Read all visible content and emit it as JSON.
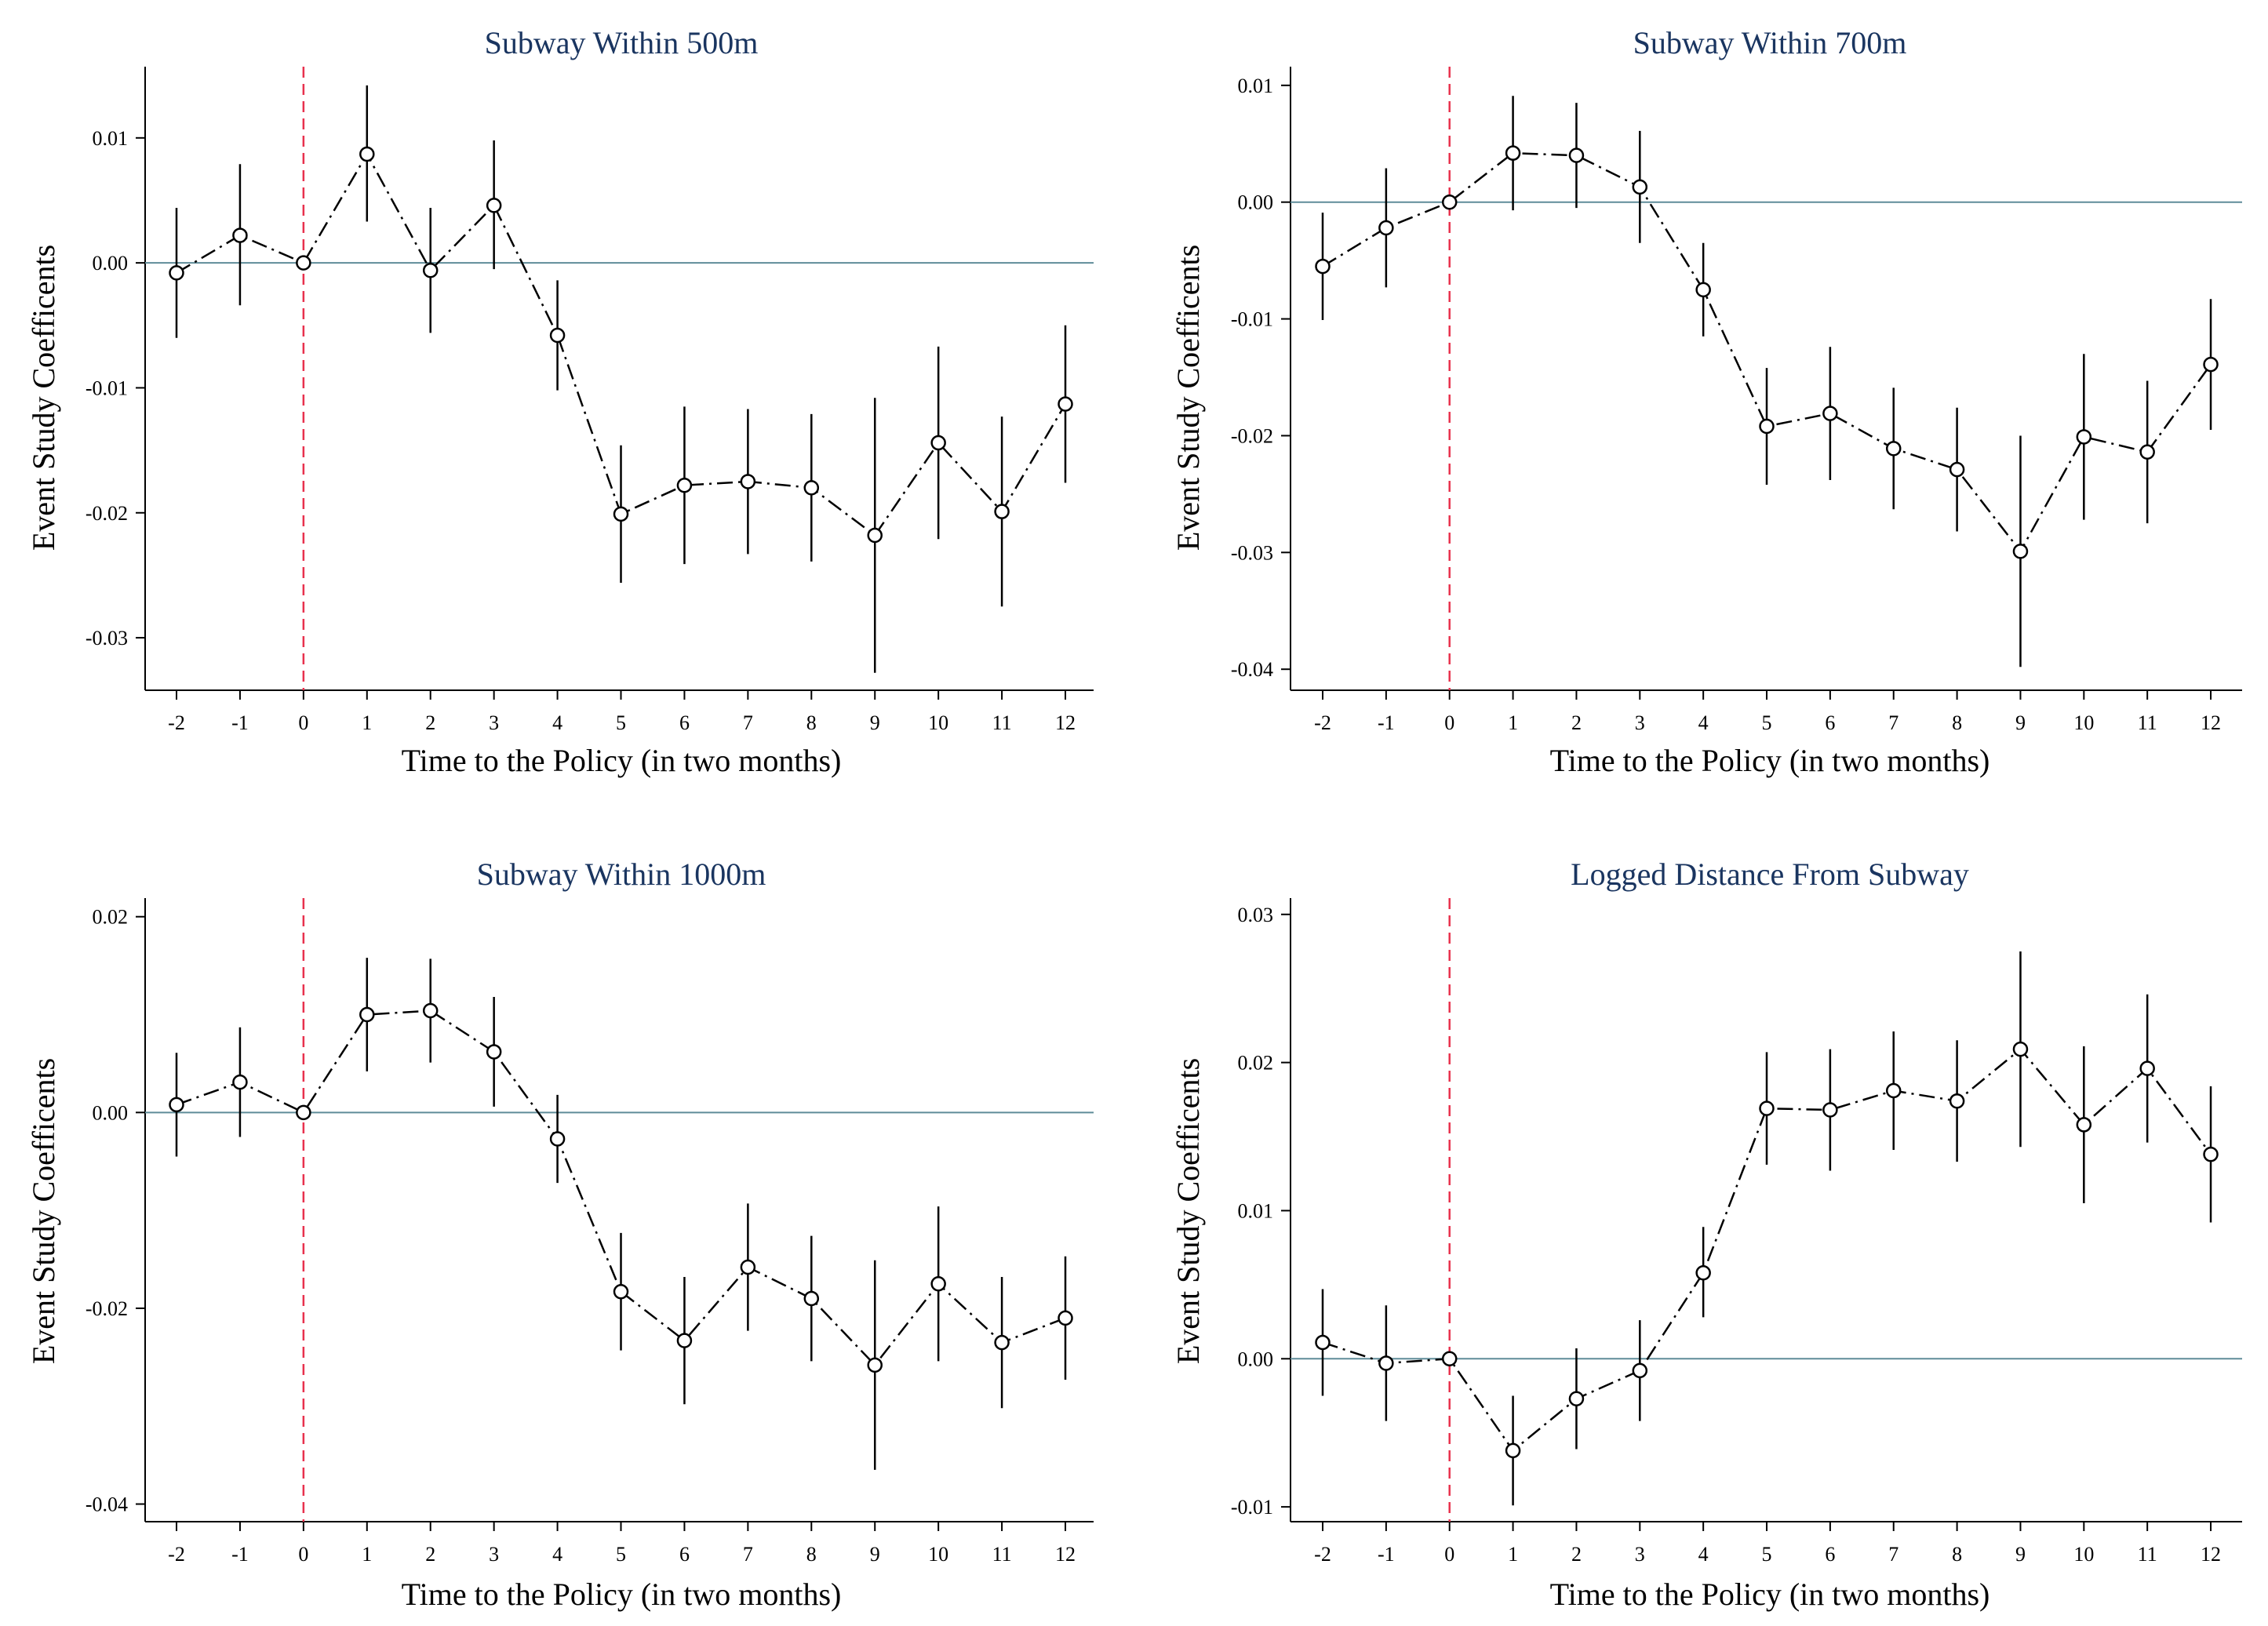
{
  "figure": {
    "description_colors": {
      "title": "#1a3560",
      "zero_line": "#5f8c99",
      "policy_line": "#e8314d",
      "series": "#000000"
    }
  },
  "chart_data": [
    {
      "id": "p500",
      "type": "line",
      "title": "Subway Within 500m",
      "xlabel": "Time to the Policy (in two months)",
      "ylabel": "Event Study Coefficents",
      "x": [
        -2,
        -1,
        0,
        1,
        2,
        3,
        4,
        5,
        6,
        7,
        8,
        9,
        10,
        11,
        12
      ],
      "x_ticks": [
        "-2",
        "-1",
        "0",
        "1",
        "2",
        "3",
        "4",
        "5",
        "6",
        "7",
        "8",
        "9",
        "10",
        "11",
        "12"
      ],
      "y_ticks": [
        0.01,
        0.0,
        -0.01,
        -0.02,
        -0.03
      ],
      "y_tick_labels": [
        "0.01",
        "0.00",
        "-0.01",
        "-0.02",
        "-0.03"
      ],
      "ylim": [
        -0.0342,
        0.0157
      ],
      "values": [
        -0.0008,
        0.0022,
        0.0,
        0.0087,
        -0.0006,
        0.0046,
        -0.0058,
        -0.0201,
        -0.0178,
        -0.0175,
        -0.018,
        -0.0218,
        -0.0144,
        -0.0199,
        -0.0113
      ],
      "ci_low": [
        -0.006,
        -0.0034,
        0.0,
        0.0033,
        -0.0056,
        -0.0005,
        -0.0102,
        -0.0256,
        -0.0241,
        -0.0233,
        -0.0239,
        -0.0328,
        -0.0221,
        -0.0275,
        -0.0176
      ],
      "ci_high": [
        0.0044,
        0.0079,
        0.0,
        0.0142,
        0.0044,
        0.0098,
        -0.0014,
        -0.0146,
        -0.0115,
        -0.0117,
        -0.0121,
        -0.0108,
        -0.0067,
        -0.0123,
        -0.005
      ],
      "policy_x": 0,
      "reference_y": 0
    },
    {
      "id": "p700",
      "type": "line",
      "title": "Subway Within 700m",
      "xlabel": "Time to the Policy (in two months)",
      "ylabel": "Event Study Coefficents",
      "x": [
        -2,
        -1,
        0,
        1,
        2,
        3,
        4,
        5,
        6,
        7,
        8,
        9,
        10,
        11,
        12
      ],
      "x_ticks": [
        "-2",
        "-1",
        "0",
        "1",
        "2",
        "3",
        "4",
        "5",
        "6",
        "7",
        "8",
        "9",
        "10",
        "11",
        "12"
      ],
      "y_ticks": [
        0.01,
        0.0,
        -0.01,
        -0.02,
        -0.03,
        -0.04
      ],
      "y_tick_labels": [
        "0.01",
        "0.00",
        "-0.01",
        "-0.02",
        "-0.03",
        "-0.04"
      ],
      "ylim": [
        -0.0418,
        0.0116
      ],
      "values": [
        -0.0055,
        -0.0022,
        0.0,
        0.0042,
        0.004,
        0.0013,
        -0.0075,
        -0.0192,
        -0.0181,
        -0.0211,
        -0.0229,
        -0.0299,
        -0.0201,
        -0.0214,
        -0.0139
      ],
      "ci_low": [
        -0.0101,
        -0.0073,
        0.0,
        -0.0007,
        -0.0005,
        -0.0035,
        -0.0115,
        -0.0242,
        -0.0238,
        -0.0263,
        -0.0282,
        -0.0398,
        -0.0272,
        -0.0275,
        -0.0195
      ],
      "ci_high": [
        -0.0009,
        0.0029,
        0.0,
        0.0091,
        0.0085,
        0.0061,
        -0.0035,
        -0.0142,
        -0.0124,
        -0.0159,
        -0.0176,
        -0.02,
        -0.013,
        -0.0153,
        -0.0083
      ],
      "policy_x": 0,
      "reference_y": 0
    },
    {
      "id": "p1000",
      "type": "line",
      "title": "Subway Within 1000m",
      "xlabel": "Time to the Policy (in two months)",
      "ylabel": "Event Study Coefficents",
      "x": [
        -2,
        -1,
        0,
        1,
        2,
        3,
        4,
        5,
        6,
        7,
        8,
        9,
        10,
        11,
        12
      ],
      "x_ticks": [
        "-2",
        "-1",
        "0",
        "1",
        "2",
        "3",
        "4",
        "5",
        "6",
        "7",
        "8",
        "9",
        "10",
        "11",
        "12"
      ],
      "y_ticks": [
        0.02,
        0.0,
        -0.02,
        -0.04
      ],
      "y_tick_labels": [
        "0.02",
        "0.00",
        "-0.02",
        "-0.04"
      ],
      "ylim": [
        -0.0418,
        0.0219
      ],
      "values": [
        0.0008,
        0.0031,
        0.0,
        0.01,
        0.0104,
        0.0062,
        -0.0027,
        -0.0183,
        -0.0233,
        -0.0158,
        -0.019,
        -0.0258,
        -0.0175,
        -0.0235,
        -0.021
      ],
      "ci_low": [
        -0.0045,
        -0.0025,
        0.0,
        0.0042,
        0.0051,
        0.0006,
        -0.0072,
        -0.0243,
        -0.0298,
        -0.0223,
        -0.0254,
        -0.0365,
        -0.0254,
        -0.0302,
        -0.0273
      ],
      "ci_high": [
        0.0061,
        0.0087,
        0.0,
        0.0158,
        0.0157,
        0.0118,
        0.0018,
        -0.0123,
        -0.0168,
        -0.0093,
        -0.0126,
        -0.0151,
        -0.0096,
        -0.0168,
        -0.0147
      ],
      "policy_x": 0,
      "reference_y": 0
    },
    {
      "id": "plog",
      "type": "line",
      "title": "Logged Distance From Subway",
      "xlabel": "Time to the Policy (in two months)",
      "ylabel": "Event Study Coefficents",
      "x": [
        -2,
        -1,
        0,
        1,
        2,
        3,
        4,
        5,
        6,
        7,
        8,
        9,
        10,
        11,
        12
      ],
      "x_ticks": [
        "-2",
        "-1",
        "0",
        "1",
        "2",
        "3",
        "4",
        "5",
        "6",
        "7",
        "8",
        "9",
        "10",
        "11",
        "12"
      ],
      "y_ticks": [
        0.03,
        0.02,
        0.01,
        0.0,
        -0.01
      ],
      "y_tick_labels": [
        "0.03",
        "0.02",
        "0.01",
        "0.00",
        "-0.01"
      ],
      "ylim": [
        -0.011,
        0.0311
      ],
      "values": [
        0.0011,
        -0.0003,
        0.0,
        -0.0062,
        -0.0027,
        -0.0008,
        0.0058,
        0.0169,
        0.0168,
        0.0181,
        0.0174,
        0.0209,
        0.0158,
        0.0196,
        0.0138
      ],
      "ci_low": [
        -0.0025,
        -0.0042,
        0.0,
        -0.0099,
        -0.0061,
        -0.0042,
        0.0028,
        0.0131,
        0.0127,
        0.0141,
        0.0133,
        0.0143,
        0.0105,
        0.0146,
        0.0092
      ],
      "ci_high": [
        0.0047,
        0.0036,
        0.0,
        -0.0025,
        0.0007,
        0.0026,
        0.0089,
        0.0207,
        0.0209,
        0.0221,
        0.0215,
        0.0275,
        0.0211,
        0.0246,
        0.0184
      ],
      "policy_x": 0,
      "reference_y": 0
    }
  ]
}
